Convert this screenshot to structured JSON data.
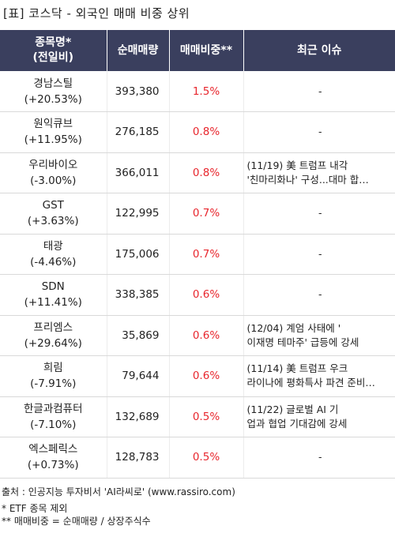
{
  "title": "[표] 코스닥 - 외국인 매매 비중 상위",
  "header": {
    "col1": "종목명*\n(전일비)",
    "col2": "순매매량",
    "col3": "매매비중**",
    "col4": "최근 이슈"
  },
  "rows": [
    {
      "name": "경남스틸",
      "change": "(+20.53%)",
      "volume": "393,380",
      "ratio": "1.5%",
      "issue1": "-",
      "issue2": ""
    },
    {
      "name": "원익큐브",
      "change": "(+11.95%)",
      "volume": "276,185",
      "ratio": "0.8%",
      "issue1": "-",
      "issue2": ""
    },
    {
      "name": "우리바이오",
      "change": "(-3.00%)",
      "volume": "366,011",
      "ratio": "0.8%",
      "issue1": "(11/19) 美 트럼프 내각",
      "issue2": "'친마리화나' 구성...대마 합…"
    },
    {
      "name": "GST",
      "change": "(+3.63%)",
      "volume": "122,995",
      "ratio": "0.7%",
      "issue1": "-",
      "issue2": ""
    },
    {
      "name": "태광",
      "change": "(-4.46%)",
      "volume": "175,006",
      "ratio": "0.7%",
      "issue1": "-",
      "issue2": ""
    },
    {
      "name": "SDN",
      "change": "(+11.41%)",
      "volume": "338,385",
      "ratio": "0.6%",
      "issue1": "-",
      "issue2": ""
    },
    {
      "name": "프리엠스",
      "change": "(+29.64%)",
      "volume": "35,869",
      "ratio": "0.6%",
      "issue1": "(12/04) 계엄 사태에 '",
      "issue2": "이재명 테마주' 급등에 강세"
    },
    {
      "name": "희림",
      "change": "(-7.91%)",
      "volume": "79,644",
      "ratio": "0.6%",
      "issue1": "(11/14) 美 트럼프 우크",
      "issue2": "라이나에 평화특사 파견 준비…"
    },
    {
      "name": "한글과컴퓨터",
      "change": "(-7.10%)",
      "volume": "132,689",
      "ratio": "0.5%",
      "issue1": "(11/22) 글로벌 AI 기",
      "issue2": "업과 협업 기대감에 강세"
    },
    {
      "name": "엑스페릭스",
      "change": "(+0.73%)",
      "volume": "128,783",
      "ratio": "0.5%",
      "issue1": "-",
      "issue2": ""
    }
  ],
  "footer": {
    "source": "출처 : 인공지능 투자비서 'AI라씨로' (www.rassiro.com)",
    "note1": "* ETF 종목 제외",
    "note2": "** 매매비중 = 순매매량 / 상장주식수"
  },
  "colors": {
    "header_bg": "#3a3f5e",
    "ratio_text": "#e8262d"
  }
}
